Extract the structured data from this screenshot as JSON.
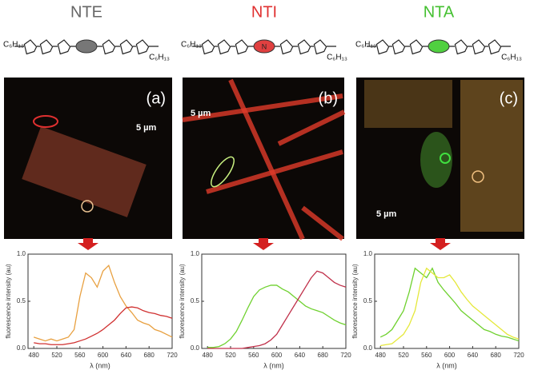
{
  "figure": {
    "panels": [
      {
        "name": "NTE",
        "name_color": "#666666",
        "substituent": "C₆H₁₃",
        "linker_color": "#777777",
        "image_label": "(a)",
        "scale_bar": "5 µm",
        "image_tint": "#c8553a"
      },
      {
        "name": "NTI",
        "name_color": "#e03030",
        "substituent": "C₆H₁₃",
        "linker_atom": "N",
        "linker_color": "#e04040",
        "image_label": "(b)",
        "scale_bar": "5 µm",
        "image_tint": "#e03a2a"
      },
      {
        "name": "NTA",
        "name_color": "#44c030",
        "substituent": "C₆H₁₃",
        "linker_color": "#50d040",
        "image_label": "(c)",
        "scale_bar": "5 µm",
        "image_tint": "#d9a040"
      }
    ]
  },
  "chart_data": [
    {
      "type": "line",
      "xlabel": "λ (nm)",
      "ylabel": "fluorescence intensity (au)",
      "x": [
        480,
        490,
        500,
        510,
        520,
        530,
        540,
        550,
        560,
        570,
        580,
        590,
        600,
        610,
        620,
        630,
        640,
        650,
        660,
        670,
        680,
        690,
        700,
        710,
        720
      ],
      "xlim": [
        470,
        720
      ],
      "xticks": [
        480,
        520,
        560,
        600,
        640,
        680,
        720
      ],
      "ylim": [
        0,
        1
      ],
      "yticks": [
        {
          "value": 0,
          "label": "0.0"
        },
        {
          "value": 0.5,
          "label": "0.5"
        },
        {
          "value": 1,
          "label": "1.0"
        }
      ],
      "series": [
        {
          "color": "#e8a040",
          "values": [
            0.12,
            0.1,
            0.08,
            0.1,
            0.08,
            0.1,
            0.12,
            0.2,
            0.55,
            0.8,
            0.75,
            0.65,
            0.82,
            0.88,
            0.7,
            0.55,
            0.45,
            0.38,
            0.3,
            0.27,
            0.25,
            0.2,
            0.18,
            0.15,
            0.12
          ]
        },
        {
          "color": "#d03030",
          "values": [
            0.06,
            0.05,
            0.05,
            0.04,
            0.04,
            0.04,
            0.05,
            0.06,
            0.08,
            0.1,
            0.13,
            0.16,
            0.2,
            0.25,
            0.3,
            0.37,
            0.43,
            0.44,
            0.43,
            0.4,
            0.38,
            0.37,
            0.35,
            0.34,
            0.32
          ]
        }
      ]
    },
    {
      "type": "line",
      "xlabel": "λ (nm)",
      "ylabel": "fluorescence intensity (au)",
      "x": [
        480,
        490,
        500,
        510,
        520,
        530,
        540,
        550,
        560,
        570,
        580,
        590,
        600,
        610,
        620,
        630,
        640,
        650,
        660,
        670,
        680,
        690,
        700,
        710,
        720
      ],
      "xlim": [
        470,
        720
      ],
      "xticks": [
        480,
        520,
        560,
        600,
        640,
        680,
        720
      ],
      "ylim": [
        0,
        1
      ],
      "yticks": [
        {
          "value": 0,
          "label": "0.0"
        },
        {
          "value": 0.5,
          "label": "0.5"
        },
        {
          "value": 1,
          "label": "1.0"
        }
      ],
      "series": [
        {
          "color": "#6fd12f",
          "values": [
            0.01,
            0.01,
            0.02,
            0.05,
            0.1,
            0.18,
            0.3,
            0.43,
            0.55,
            0.62,
            0.65,
            0.67,
            0.67,
            0.63,
            0.6,
            0.55,
            0.5,
            0.45,
            0.42,
            0.4,
            0.38,
            0.34,
            0.3,
            0.27,
            0.25
          ]
        },
        {
          "color": "#c0304a",
          "values": [
            0,
            0,
            0,
            0,
            0,
            0,
            0,
            0.01,
            0.02,
            0.03,
            0.05,
            0.09,
            0.15,
            0.25,
            0.35,
            0.45,
            0.55,
            0.65,
            0.75,
            0.82,
            0.8,
            0.75,
            0.7,
            0.67,
            0.65
          ]
        }
      ]
    },
    {
      "type": "line",
      "xlabel": "λ (nm)",
      "ylabel": "fluorescence intensity (au)",
      "x": [
        480,
        490,
        500,
        510,
        520,
        530,
        540,
        550,
        560,
        570,
        580,
        590,
        600,
        610,
        620,
        630,
        640,
        650,
        660,
        670,
        680,
        690,
        700,
        710,
        720
      ],
      "xlim": [
        470,
        720
      ],
      "xticks": [
        480,
        520,
        560,
        600,
        640,
        680,
        720
      ],
      "ylim": [
        0,
        1
      ],
      "yticks": [
        {
          "value": 0,
          "label": "0.0"
        },
        {
          "value": 0.5,
          "label": "0.5"
        },
        {
          "value": 1,
          "label": "1.0"
        }
      ],
      "series": [
        {
          "color": "#6fd12f",
          "values": [
            0.12,
            0.15,
            0.2,
            0.3,
            0.4,
            0.6,
            0.85,
            0.8,
            0.75,
            0.85,
            0.7,
            0.62,
            0.55,
            0.48,
            0.4,
            0.35,
            0.3,
            0.25,
            0.2,
            0.18,
            0.15,
            0.13,
            0.12,
            0.1,
            0.08
          ]
        },
        {
          "color": "#e5e83a",
          "values": [
            0.03,
            0.04,
            0.05,
            0.1,
            0.15,
            0.25,
            0.4,
            0.7,
            0.85,
            0.8,
            0.75,
            0.75,
            0.78,
            0.7,
            0.6,
            0.52,
            0.45,
            0.4,
            0.35,
            0.3,
            0.25,
            0.2,
            0.15,
            0.12,
            0.1
          ]
        }
      ]
    }
  ]
}
